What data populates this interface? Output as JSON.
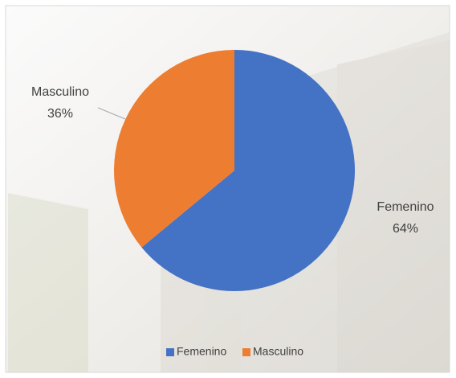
{
  "chart_data": {
    "type": "pie",
    "categories": [
      "Femenino",
      "Masculino"
    ],
    "values": [
      64,
      36
    ],
    "value_labels": [
      "64%",
      "36%"
    ],
    "colors": [
      "#4472c4",
      "#ed7d31"
    ],
    "legend": "bottom"
  }
}
